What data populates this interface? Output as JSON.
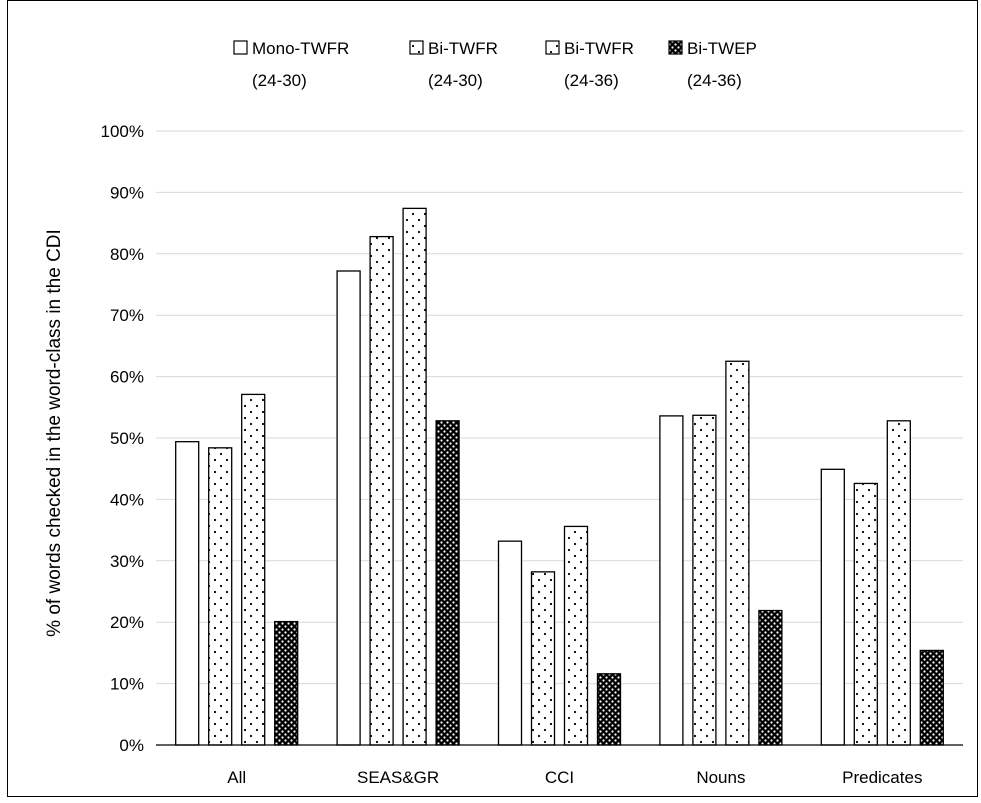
{
  "chart_data": {
    "type": "bar",
    "title": "",
    "xlabel": "",
    "ylabel": "% of words checked in the word-class in the CDI",
    "categories": [
      "All",
      "SEAS&GR",
      "CCI",
      "Nouns",
      "Predicates"
    ],
    "ylim": [
      0,
      100
    ],
    "yticks": [
      0,
      10,
      20,
      30,
      40,
      50,
      60,
      70,
      80,
      90,
      100
    ],
    "ytick_labels": [
      "0%",
      "10%",
      "20%",
      "30%",
      "40%",
      "50%",
      "60%",
      "70%",
      "80%",
      "90%",
      "100%"
    ],
    "grid": true,
    "legend_position": "top",
    "series": [
      {
        "name": "Mono-TWFR",
        "name_line2": "(24-30)",
        "pattern": "solid-white",
        "values": [
          49.4,
          77.2,
          33.2,
          53.6,
          44.9
        ]
      },
      {
        "name": "Bi-TWFR",
        "name_line2": "(24-30)",
        "pattern": "sparse-dots",
        "values": [
          48.4,
          82.8,
          28.2,
          53.7,
          42.6
        ]
      },
      {
        "name": "Bi-TWFR",
        "name_line2": "(24-36)",
        "pattern": "sparse-dots",
        "values": [
          57.1,
          87.4,
          35.6,
          62.5,
          52.8
        ]
      },
      {
        "name": "Bi-TWEP",
        "name_line2": "(24-36)",
        "pattern": "dense-checker",
        "values": [
          20.1,
          52.8,
          11.6,
          21.9,
          15.4
        ]
      }
    ],
    "colors": {
      "bar_stroke": "#000000",
      "grid": "#d9d9d9",
      "axis": "#000000",
      "checker_dark": "#000000",
      "checker_light": "#ffffff"
    }
  }
}
